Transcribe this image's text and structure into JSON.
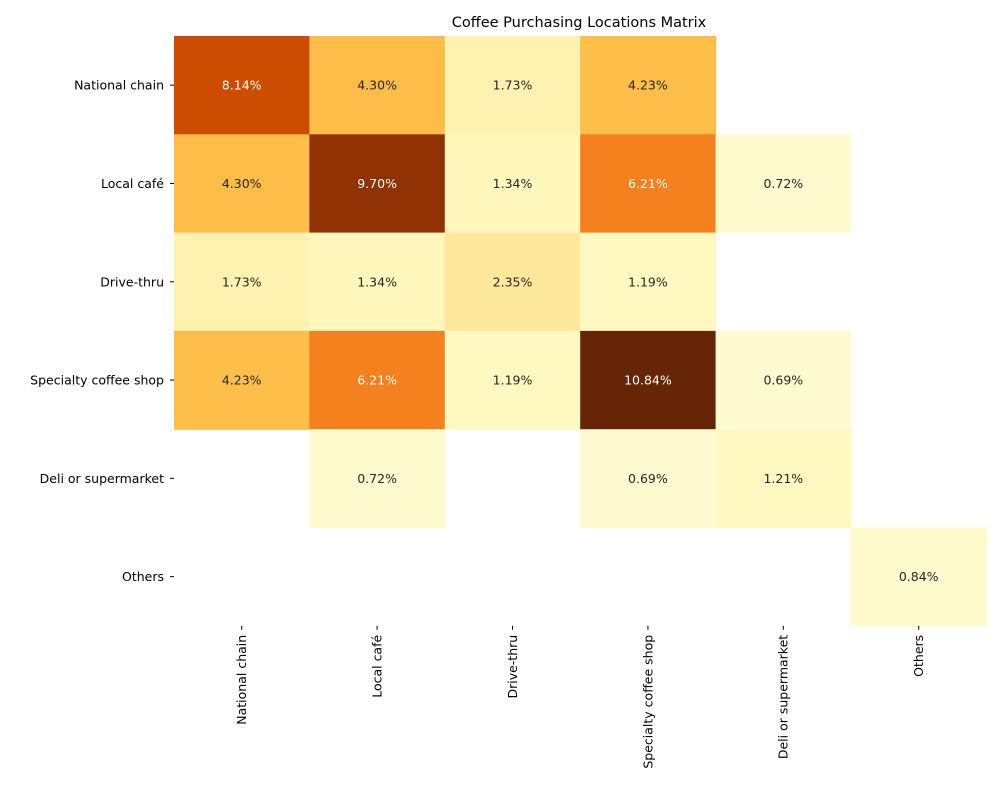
{
  "chart_data": {
    "type": "heatmap",
    "title": "Coffee Purchasing Locations Matrix",
    "xlabel": "",
    "ylabel": "",
    "rows": [
      "National chain",
      "Local café",
      "Drive-thru",
      "Specialty coffee shop",
      "Deli or supermarket",
      "Others"
    ],
    "columns": [
      "National chain",
      "Local café",
      "Drive-thru",
      "Specialty coffee shop",
      "Deli or supermarket",
      "Others"
    ],
    "values": [
      [
        8.14,
        4.3,
        1.73,
        4.23,
        null,
        null
      ],
      [
        4.3,
        9.7,
        1.34,
        6.21,
        0.72,
        null
      ],
      [
        1.73,
        1.34,
        2.35,
        1.19,
        null,
        null
      ],
      [
        4.23,
        6.21,
        1.19,
        10.84,
        0.69,
        null
      ],
      [
        null,
        0.72,
        null,
        0.69,
        1.21,
        null
      ],
      [
        null,
        null,
        null,
        null,
        null,
        0.84
      ]
    ],
    "value_format": "percent_2dp",
    "colormap": "YlOrBr",
    "vmin": 0,
    "vmax": 10.84,
    "colorbar": false,
    "grid": false
  }
}
